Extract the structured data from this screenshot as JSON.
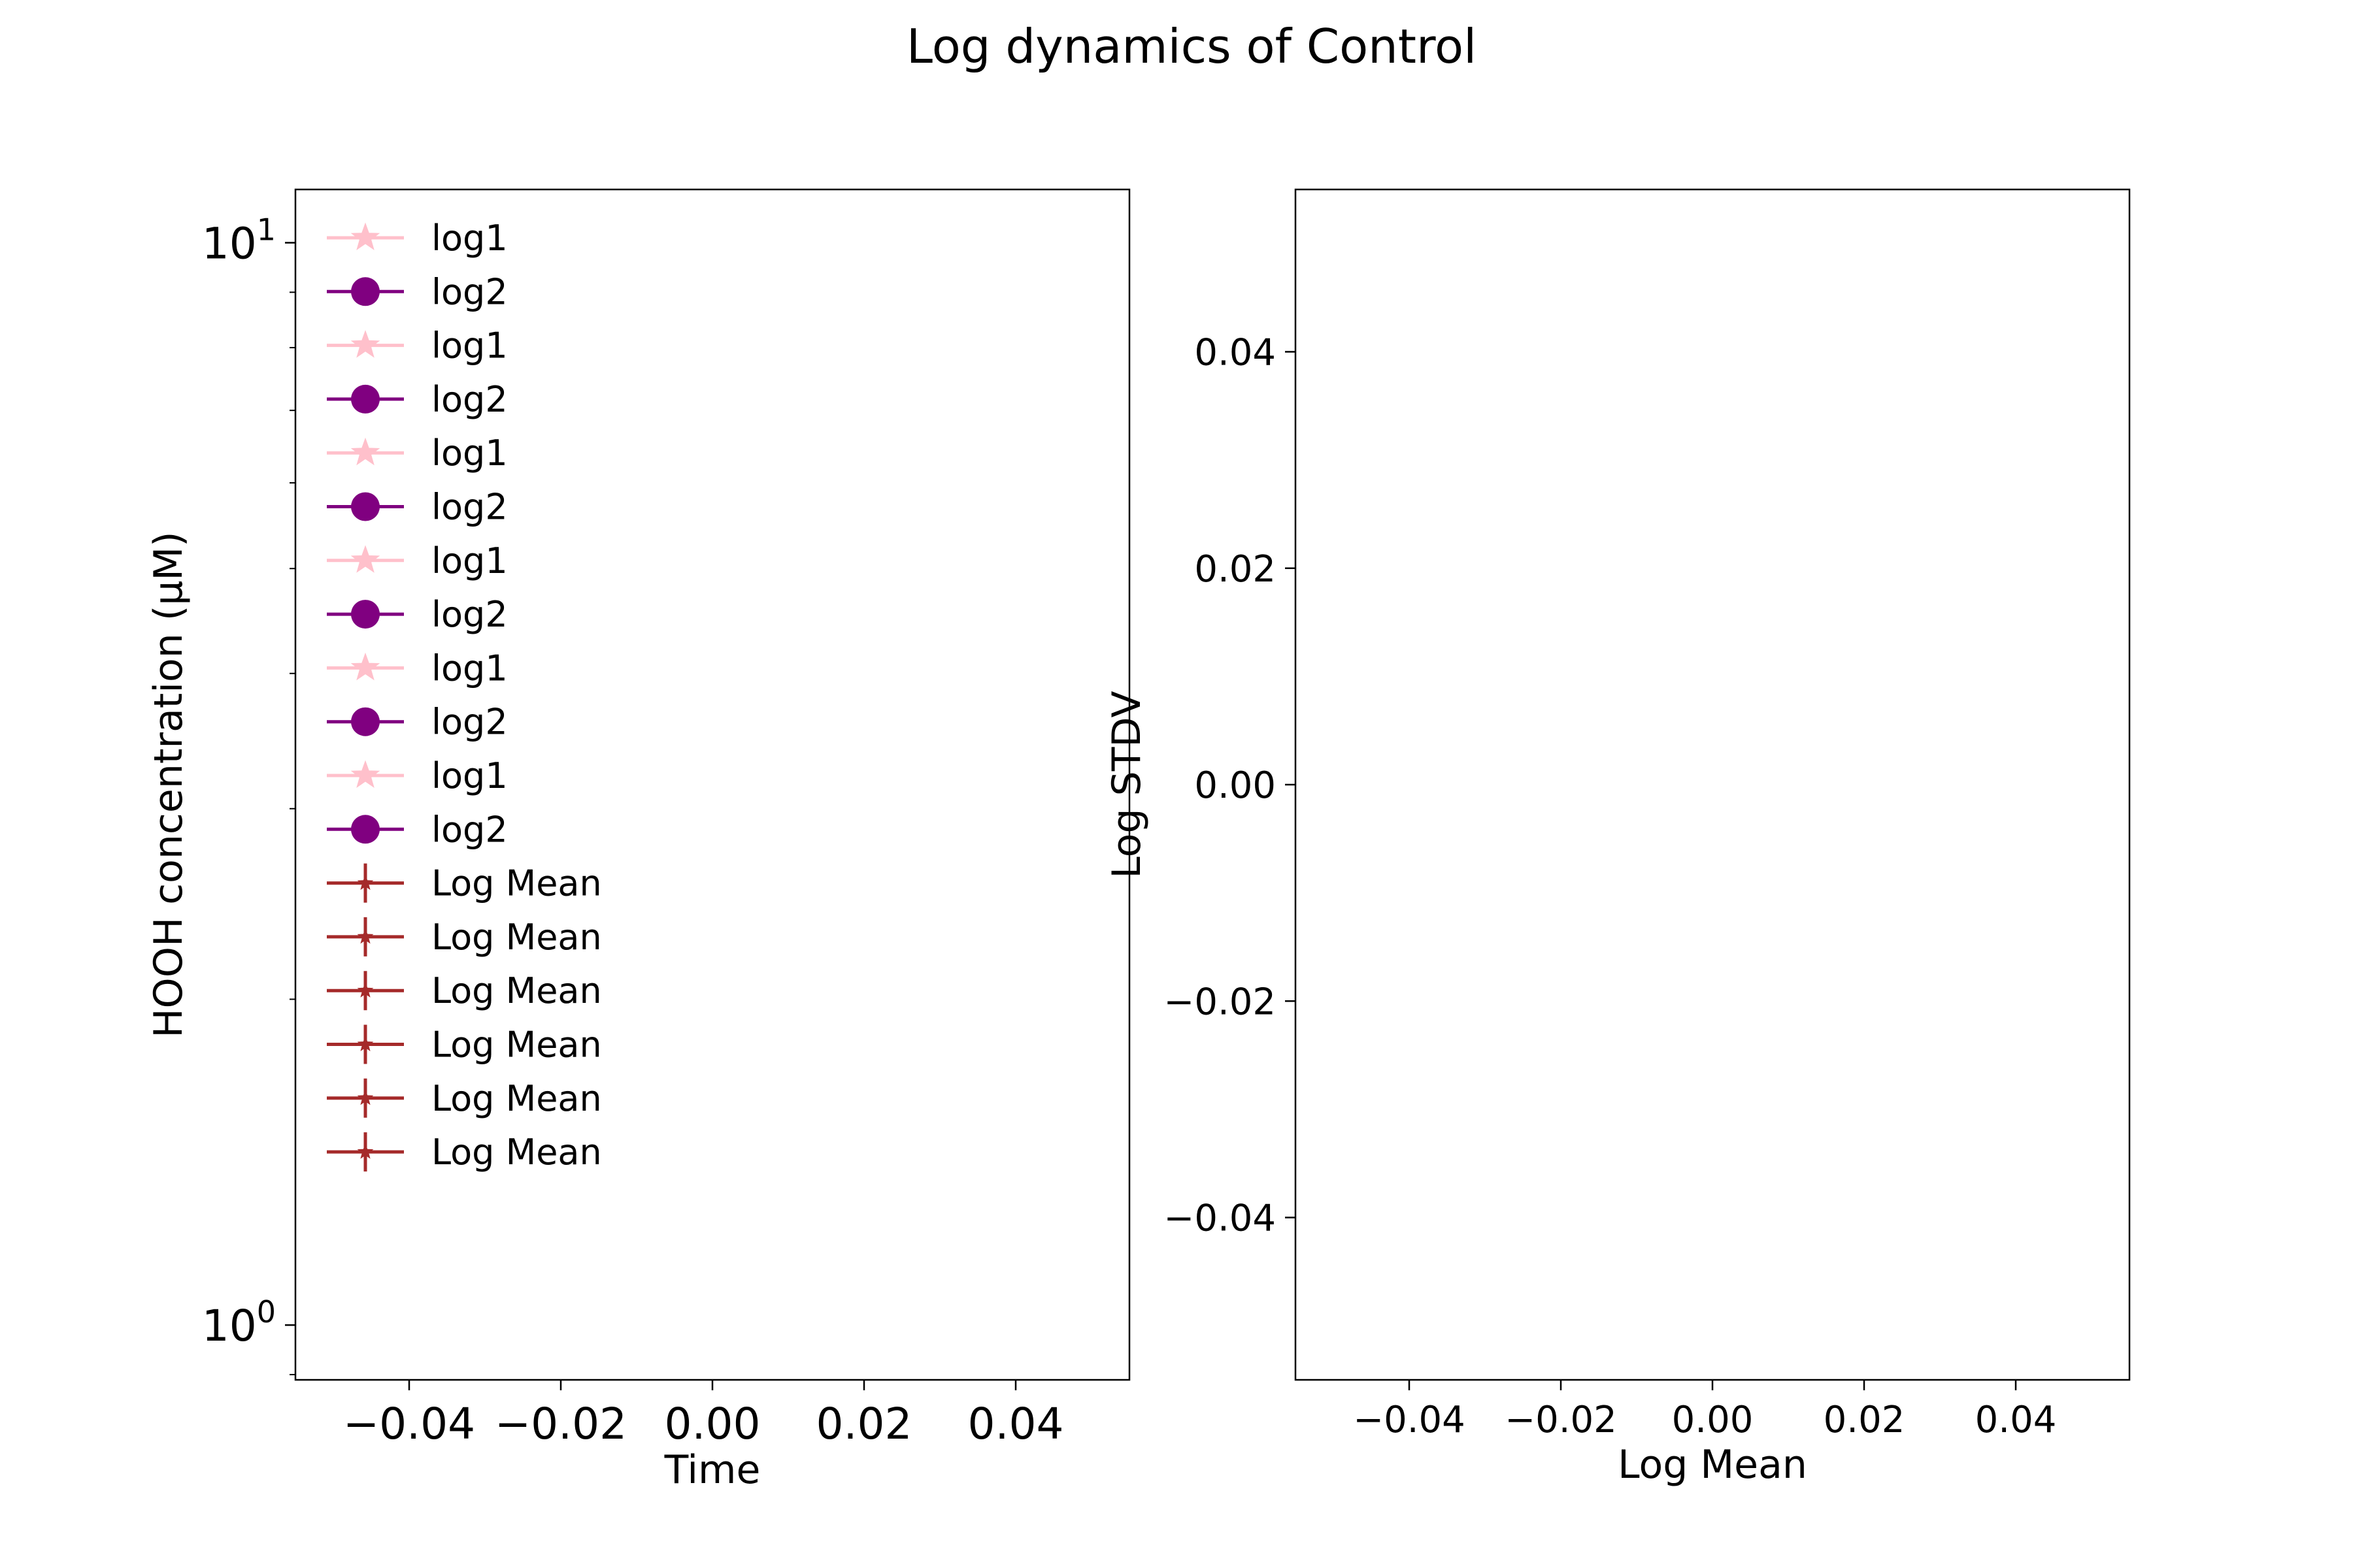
{
  "figure": {
    "title": "Log  dynamics of Control"
  },
  "chart_data": [
    {
      "type": "line",
      "xlabel": "Time",
      "ylabel": "HOOH concentration (µM)",
      "xlim": [
        -0.055,
        0.055
      ],
      "ylim": [
        0.89,
        11.2
      ],
      "yscale": "log",
      "x_ticks": [
        -0.04,
        -0.02,
        0.0,
        0.02,
        0.04
      ],
      "x_tick_labels": [
        "−0.04",
        "−0.02",
        "0.00",
        "0.02",
        "0.04"
      ],
      "y_ticks": [
        1,
        10
      ],
      "y_tick_labels": [
        {
          "base": "10",
          "exp": "0"
        },
        {
          "base": "10",
          "exp": "1"
        }
      ],
      "y_minor_ticks": [
        0.9,
        2,
        3,
        4,
        5,
        6,
        7,
        8,
        9
      ],
      "grid": false,
      "legend_position": "upper-left",
      "legend": [
        {
          "label": "log1",
          "color": "#ffc0cb",
          "marker": "star"
        },
        {
          "label": "log2",
          "color": "#800080",
          "marker": "circle"
        },
        {
          "label": "log1",
          "color": "#ffc0cb",
          "marker": "star"
        },
        {
          "label": "log2",
          "color": "#800080",
          "marker": "circle"
        },
        {
          "label": "log1",
          "color": "#ffc0cb",
          "marker": "star"
        },
        {
          "label": "log2",
          "color": "#800080",
          "marker": "circle"
        },
        {
          "label": "log1",
          "color": "#ffc0cb",
          "marker": "star"
        },
        {
          "label": "log2",
          "color": "#800080",
          "marker": "circle"
        },
        {
          "label": "log1",
          "color": "#ffc0cb",
          "marker": "star"
        },
        {
          "label": "log2",
          "color": "#800080",
          "marker": "circle"
        },
        {
          "label": "log1",
          "color": "#ffc0cb",
          "marker": "star"
        },
        {
          "label": "log2",
          "color": "#800080",
          "marker": "circle"
        },
        {
          "label": "Log Mean",
          "color": "#a52a2a",
          "marker": "errorbar-star"
        },
        {
          "label": "Log Mean",
          "color": "#a52a2a",
          "marker": "errorbar-star"
        },
        {
          "label": "Log Mean",
          "color": "#a52a2a",
          "marker": "errorbar-star"
        },
        {
          "label": "Log Mean",
          "color": "#a52a2a",
          "marker": "errorbar-star"
        },
        {
          "label": "Log Mean",
          "color": "#a52a2a",
          "marker": "errorbar-star"
        },
        {
          "label": "Log Mean",
          "color": "#a52a2a",
          "marker": "errorbar-star"
        }
      ],
      "series": []
    },
    {
      "type": "scatter",
      "xlabel": "Log Mean",
      "ylabel": "Log STDV",
      "xlim": [
        -0.055,
        0.055
      ],
      "ylim": [
        -0.055,
        0.055
      ],
      "x_ticks": [
        -0.04,
        -0.02,
        0.0,
        0.02,
        0.04
      ],
      "x_tick_labels": [
        "−0.04",
        "−0.02",
        "0.00",
        "0.02",
        "0.04"
      ],
      "y_ticks": [
        0.04,
        0.02,
        0.0,
        -0.02,
        -0.04
      ],
      "y_tick_labels": [
        "0.04",
        "0.02",
        "0.00",
        "−0.02",
        "−0.04"
      ],
      "grid": false,
      "series": []
    }
  ]
}
